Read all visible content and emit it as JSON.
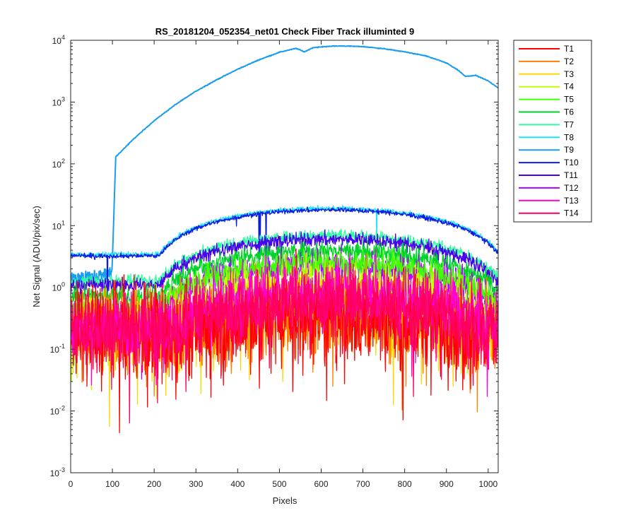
{
  "chart_data": {
    "type": "line",
    "title": "RS_20181204_052354_net01   Check Fiber     Track illuminted 9",
    "xlabel": "Pixels",
    "ylabel": "Net Signal (ADU/pix/sec)",
    "xlim": [
      0,
      1024
    ],
    "ylim": [
      0.001,
      10000
    ],
    "yscale": "log",
    "grid": false,
    "legend_position": "outside-top-right",
    "x_ticks": [
      "0",
      "100",
      "200",
      "300",
      "400",
      "500",
      "600",
      "700",
      "800",
      "900",
      "1000"
    ],
    "y_ticks": [
      {
        "base": "10",
        "exp": "-3"
      },
      {
        "base": "10",
        "exp": "-2"
      },
      {
        "base": "10",
        "exp": "-1"
      },
      {
        "base": "10",
        "exp": "0"
      },
      {
        "base": "10",
        "exp": "1"
      },
      {
        "base": "10",
        "exp": "2"
      },
      {
        "base": "10",
        "exp": "3"
      },
      {
        "base": "10",
        "exp": "4"
      }
    ],
    "series": [
      {
        "name": "T1",
        "color": "#ff0000",
        "peak": 0.35,
        "noise": 1.2
      },
      {
        "name": "T2",
        "color": "#ff7f00",
        "peak": 0.4,
        "noise": 1.1
      },
      {
        "name": "T3",
        "color": "#ffd700",
        "peak": 0.45,
        "noise": 1.0
      },
      {
        "name": "T4",
        "color": "#bfff00",
        "peak": 1.2,
        "noise": 0.6
      },
      {
        "name": "T5",
        "color": "#3fff00",
        "peak": 2.5,
        "noise": 0.35
      },
      {
        "name": "T6",
        "color": "#00d22a",
        "peak": 4.0,
        "noise": 0.25
      },
      {
        "name": "T7",
        "color": "#2dffa0",
        "peak": 7.0,
        "noise": 0.15
      },
      {
        "name": "T8",
        "color": "#1ee8ff",
        "peak": 19.0,
        "noise": 0.06
      },
      {
        "name": "T9",
        "color": "#1a9cf0",
        "peak": 8000,
        "noise": 0.0
      },
      {
        "name": "T10",
        "color": "#0b1ee0",
        "peak": 18.0,
        "noise": 0.06
      },
      {
        "name": "T11",
        "color": "#4a00e8",
        "peak": 6.0,
        "noise": 0.18
      },
      {
        "name": "T12",
        "color": "#b000ff",
        "peak": 2.2,
        "noise": 0.4
      },
      {
        "name": "T13",
        "color": "#ff00d0",
        "peak": 0.9,
        "noise": 0.8
      },
      {
        "name": "T14",
        "color": "#ff0060",
        "peak": 0.6,
        "noise": 0.9
      }
    ],
    "t9_profile": {
      "x": [
        100,
        108,
        150,
        200,
        250,
        300,
        350,
        400,
        450,
        500,
        540,
        560,
        580,
        620,
        650,
        700,
        750,
        800,
        850,
        900,
        930,
        945,
        970,
        1000,
        1024
      ],
      "y": [
        3,
        130,
        250,
        500,
        900,
        1500,
        2300,
        3400,
        4800,
        6400,
        7400,
        6500,
        7600,
        8000,
        8100,
        7900,
        7300,
        6500,
        5600,
        4300,
        3200,
        2600,
        2700,
        2200,
        1700
      ]
    }
  }
}
